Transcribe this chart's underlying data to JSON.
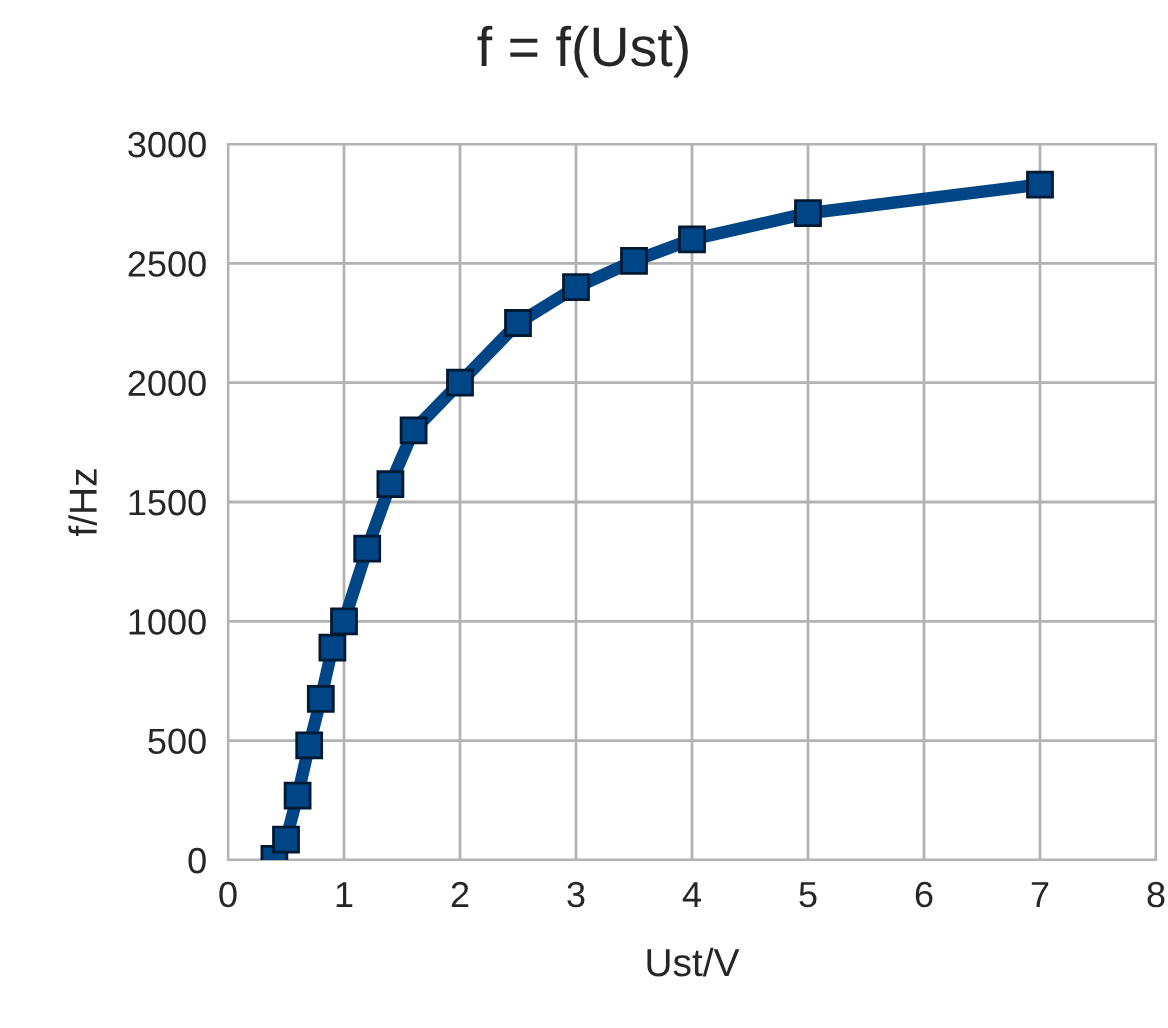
{
  "chart_data": {
    "type": "line",
    "title": "f = f(Ust)",
    "xlabel": "Ust/V",
    "ylabel": "f/Hz",
    "x": [
      0.4,
      0.5,
      0.6,
      0.7,
      0.8,
      0.9,
      1.0,
      1.2,
      1.4,
      1.6,
      2,
      2.5,
      3,
      3.5,
      4,
      5,
      7
    ],
    "series": [
      {
        "color": "#004586",
        "values": [
          5,
          85,
          270,
          480,
          675,
          890,
          1000,
          1305,
          1575,
          1800,
          2000,
          2250,
          2400,
          2510,
          2600,
          2710,
          2830
        ]
      }
    ],
    "xlim": [
      0,
      8
    ],
    "xticks": [
      0,
      1,
      2,
      3,
      4,
      5,
      6,
      7,
      8
    ],
    "ylim": [
      0,
      3000
    ],
    "yticks": [
      0,
      500,
      1000,
      1500,
      2000,
      2500,
      3000
    ],
    "grid": true,
    "legend": false,
    "marker": "square",
    "line_style": "solid"
  }
}
